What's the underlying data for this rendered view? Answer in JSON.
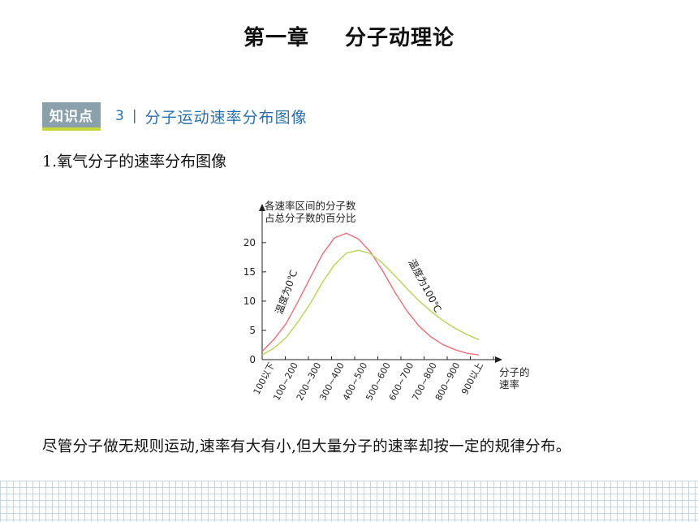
{
  "header": {
    "chapter": "第一章",
    "chapter_title": "分子动理论"
  },
  "section": {
    "badge": "知识点",
    "number": "3",
    "separator": "|",
    "title": "分子运动速率分布图像"
  },
  "subheading": "1.氧气分子的速率分布图像",
  "summary": "尽管分子做无规则运动,速率有大有小,但大量分子的速率却按一定的规律分布。",
  "chart_data": {
    "type": "line",
    "ylabel": [
      "各速率区间的分子数",
      "占总分子数的百分比"
    ],
    "xlabel": [
      "分子的",
      "速率"
    ],
    "yticks": [
      0,
      5,
      10,
      15,
      20
    ],
    "ylim": [
      0,
      24
    ],
    "categories": [
      "100以下",
      "100~200",
      "200~300",
      "300~400",
      "400~500",
      "500~600",
      "600~700",
      "700~800",
      "800~900",
      "900以上"
    ],
    "grid": false,
    "series": [
      {
        "name": "温度为0℃",
        "color": "#e8707a",
        "x": [
          0,
          0.5,
          1,
          1.5,
          2,
          2.5,
          3,
          3.5,
          4,
          4.5,
          5,
          5.5,
          6,
          6.5,
          7,
          7.5,
          8,
          8.5,
          9
        ],
        "values": [
          1.4,
          3.5,
          6.2,
          10.0,
          14.0,
          18.0,
          20.8,
          21.6,
          20.6,
          18.4,
          15.2,
          11.6,
          8.4,
          5.8,
          3.9,
          2.6,
          1.7,
          1.1,
          0.8
        ]
      },
      {
        "name": "温度为100℃",
        "color": "#b8d25a",
        "x": [
          0,
          0.5,
          1,
          1.5,
          2,
          2.5,
          3,
          3.5,
          4,
          4.5,
          5,
          5.5,
          6,
          6.5,
          7,
          7.5,
          8,
          8.5,
          9
        ],
        "values": [
          0.8,
          2.0,
          3.8,
          6.5,
          9.6,
          13.2,
          16.2,
          18.2,
          18.7,
          18.1,
          16.5,
          14.4,
          12.2,
          10.1,
          8.3,
          6.7,
          5.4,
          4.3,
          3.4
        ]
      }
    ]
  }
}
